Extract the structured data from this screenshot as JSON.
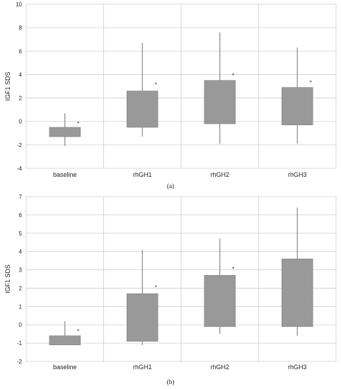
{
  "chart_data": [
    {
      "type": "box",
      "panel_label": "(a)",
      "ylabel": "IGF1 SDS",
      "ylim": [
        -4,
        10
      ],
      "yticks": [
        -4,
        -2,
        0,
        2,
        4,
        6,
        8,
        10
      ],
      "categories": [
        "baseline",
        "rhGH1",
        "rhGH2",
        "rhGH3"
      ],
      "grid": true,
      "boxes": [
        {
          "min": -2.1,
          "q1": -1.3,
          "q3": -0.5,
          "max": 0.7,
          "mean": -0.1,
          "mean_marker": "*"
        },
        {
          "min": -1.3,
          "q1": -0.5,
          "q3": 2.6,
          "max": 6.7,
          "mean": 3.2,
          "mean_marker": "*"
        },
        {
          "min": -1.9,
          "q1": -0.2,
          "q3": 3.5,
          "max": 7.6,
          "mean": 4.0,
          "mean_marker": "*"
        },
        {
          "min": -1.9,
          "q1": -0.3,
          "q3": 2.9,
          "max": 6.3,
          "mean": 3.4,
          "mean_marker": "*"
        }
      ]
    },
    {
      "type": "box",
      "panel_label": "(b)",
      "ylabel": "IGF1 SDS",
      "ylim": [
        -2,
        7
      ],
      "yticks": [
        -2,
        -1,
        0,
        1,
        2,
        3,
        4,
        5,
        6,
        7
      ],
      "categories": [
        "baseline",
        "rhGH1",
        "rhGH2",
        "rhGH3"
      ],
      "grid": true,
      "boxes": [
        {
          "min": -1.1,
          "q1": -1.1,
          "q3": -0.6,
          "max": 0.2,
          "mean": -0.3,
          "mean_marker": "*"
        },
        {
          "min": -1.1,
          "q1": -0.9,
          "q3": 1.7,
          "max": 4.1,
          "mean": 2.1,
          "mean_marker": "*"
        },
        {
          "min": -0.5,
          "q1": -0.1,
          "q3": 2.7,
          "max": 4.7,
          "mean": 3.1,
          "mean_marker": "*"
        },
        {
          "min": -0.6,
          "q1": -0.1,
          "q3": 3.6,
          "max": 6.4,
          "mean": null,
          "mean_marker": ""
        }
      ]
    }
  ]
}
